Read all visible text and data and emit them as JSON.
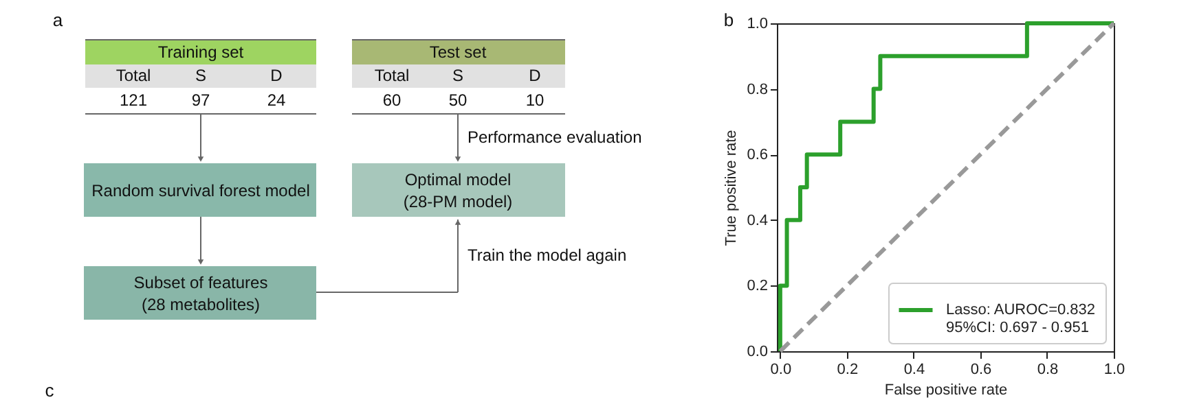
{
  "chart_data": [
    {
      "type": "other",
      "annotations": [
        "a",
        "Training set",
        "Total",
        "S",
        "D",
        "121",
        "97",
        "24",
        "Test set",
        "Total",
        "S",
        "D",
        "60",
        "50",
        "10",
        "Performance evaluation",
        "Random survival forest model",
        "Optimal model\n(28-PM model)",
        "Subset of features\n(28 metabolites)",
        "Train the model again",
        "c"
      ]
    },
    {
      "type": "line",
      "xlabel": "False positive rate",
      "ylabel": "True positive rate",
      "xlim": [
        -0.01,
        1.0
      ],
      "ylim": [
        0,
        1.0
      ],
      "xticks": [
        {
          "value": 0,
          "label": "0.0"
        },
        {
          "value": 0.2,
          "label": "0.2"
        },
        {
          "value": 0.4,
          "label": "0.4"
        },
        {
          "value": 0.6,
          "label": "0.6"
        },
        {
          "value": 0.8,
          "label": "0.8"
        },
        {
          "value": 1,
          "label": "1.0"
        }
      ],
      "yticks": [
        {
          "value": 0,
          "label": "0.0"
        },
        {
          "value": 0.2,
          "label": "0.2"
        },
        {
          "value": 0.4,
          "label": "0.4"
        },
        {
          "value": 0.6,
          "label": "0.6"
        },
        {
          "value": 0.8,
          "label": "0.8"
        },
        {
          "value": 1,
          "label": "1.0"
        }
      ],
      "grid": false,
      "legend": "bottom right",
      "annotations": [
        "b"
      ],
      "series": [
        {
          "name": "Lasso: AUROC=0.832\n95%CI: 0.697 - 0.951",
          "color": "#2ca02c",
          "line_style": "solid",
          "x": [
            0,
            0,
            0.02,
            0.02,
            0.06,
            0.06,
            0.08,
            0.08,
            0.18,
            0.18,
            0.28,
            0.28,
            0.3,
            0.3,
            0.74,
            0.74,
            1.0
          ],
          "values": [
            0,
            0.2,
            0.2,
            0.4,
            0.4,
            0.5,
            0.5,
            0.6,
            0.6,
            0.7,
            0.7,
            0.8,
            0.8,
            0.9,
            0.9,
            1.0,
            1.0
          ]
        },
        {
          "color": "#999999",
          "line_style": "dashed",
          "x": [
            0,
            1
          ],
          "values": [
            0,
            1
          ]
        }
      ]
    }
  ]
}
